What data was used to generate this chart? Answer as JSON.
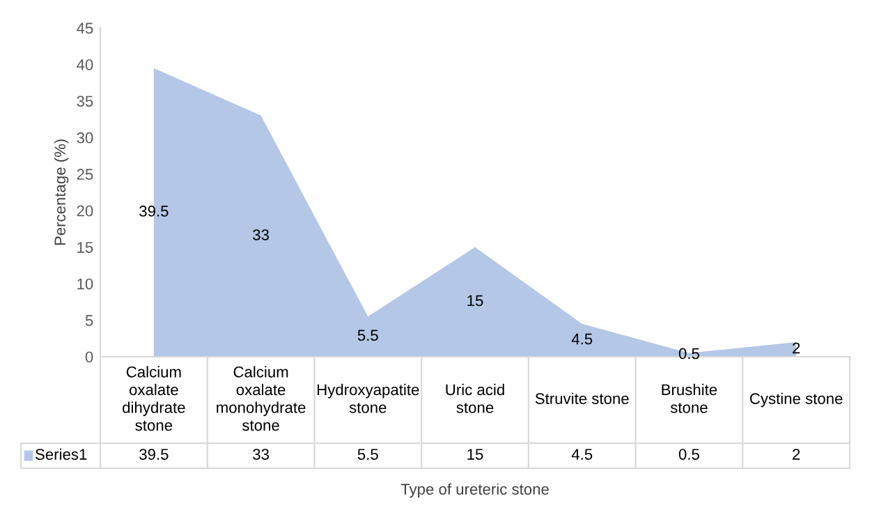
{
  "chart_data": {
    "type": "area",
    "xlabel": "Type of ureteric stone",
    "ylabel": "Percentage (%)",
    "categories": [
      "Calcium oxalate dihydrate stone",
      "Calcium oxalate monohydrate stone",
      "Hydroxyapatite stone",
      "Uric acid stone",
      "Struvite stone",
      "Brushite stone",
      "Cystine stone"
    ],
    "series": [
      {
        "name": "Series1",
        "color": "#b4c7e7",
        "values": [
          39.5,
          33,
          5.5,
          15,
          4.5,
          0.5,
          2
        ]
      }
    ],
    "annotations": [
      "39.5",
      "33",
      "5.5",
      "15",
      "4.5",
      "0.5",
      "2"
    ],
    "ylim": [
      0,
      45
    ],
    "yticks": [
      0,
      5,
      10,
      15,
      20,
      25,
      30,
      35,
      40,
      45
    ],
    "grid": false,
    "data_labels": true
  }
}
